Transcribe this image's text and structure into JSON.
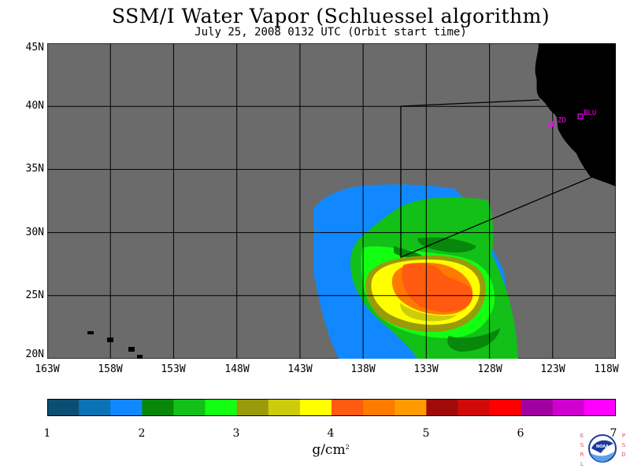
{
  "title": "SSM/I Water Vapor (Schluessel algorithm)",
  "subtitle": "July 25, 2008  0132 UTC  (Orbit start time)",
  "map": {
    "lat_labels": [
      "45N",
      "40N",
      "35N",
      "30N",
      "25N",
      "20N"
    ],
    "lon_labels": [
      "163W",
      "158W",
      "153W",
      "148W",
      "143W",
      "138W",
      "133W",
      "128W",
      "123W",
      "118W"
    ],
    "lat_range": [
      20,
      45
    ],
    "lon_range": [
      -163,
      -118
    ],
    "background_color": "#6b6b6b",
    "land_color": "#000000",
    "stations": [
      {
        "label": "CZD",
        "lat": 38.6,
        "lon": -123.2
      },
      {
        "label": "BLU",
        "lat": 39.2,
        "lon": -120.8
      }
    ],
    "station_color": "#ff00ff"
  },
  "colorbar": {
    "colors": [
      "#0a4f73",
      "#0b72b6",
      "#1188ff",
      "#07880a",
      "#12c018",
      "#12ff12",
      "#9a9a0a",
      "#cccc0a",
      "#ffff00",
      "#ff5a10",
      "#ff7a00",
      "#ff9a00",
      "#a00a0a",
      "#d00a0a",
      "#ff0000",
      "#a000a0",
      "#d000d0",
      "#ff00ff"
    ],
    "tick_labels": [
      "1",
      "2",
      "3",
      "4",
      "5",
      "6",
      "7"
    ],
    "units_base": "g/cm",
    "units_exp": "2"
  },
  "logo": {
    "left_text": "ESRL",
    "right_text": "PSD",
    "center_text": "NOAA"
  }
}
